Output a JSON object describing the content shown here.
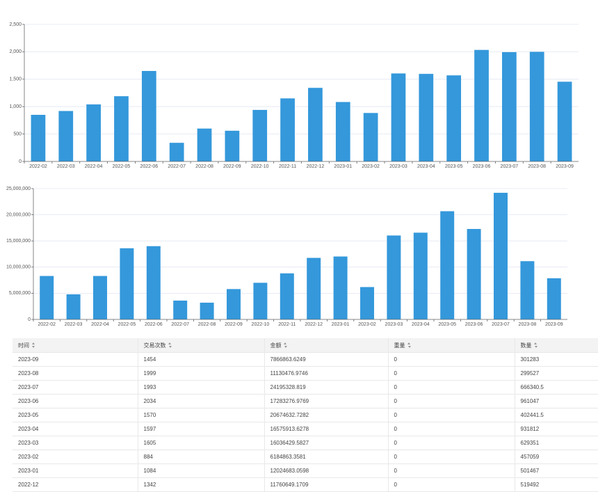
{
  "chart_data": [
    {
      "type": "bar",
      "color": "#3498db",
      "grid": true,
      "categories": [
        "2022-02",
        "2022-03",
        "2022-04",
        "2022-05",
        "2022-06",
        "2022-07",
        "2022-08",
        "2022-09",
        "2022-10",
        "2022-11",
        "2022-12",
        "2023-01",
        "2023-02",
        "2023-03",
        "2023-04",
        "2023-05",
        "2023-06",
        "2023-07",
        "2023-08",
        "2023-09"
      ],
      "values": [
        850,
        920,
        1040,
        1190,
        1650,
        340,
        600,
        560,
        940,
        1150,
        1342,
        1084,
        884,
        1605,
        1597,
        1570,
        2034,
        1993,
        1999,
        1454
      ],
      "ylim": [
        0,
        2500
      ],
      "yticks": [
        0,
        500,
        {
          "value": 1000,
          "label": "1,000"
        },
        {
          "value": 1500,
          "label": "1,500"
        },
        {
          "value": 2000,
          "label": "2,000"
        },
        {
          "value": 2500,
          "label": "2,500"
        }
      ]
    },
    {
      "type": "bar",
      "color": "#3498db",
      "grid": true,
      "categories": [
        "2022-02",
        "2022-03",
        "2022-04",
        "2022-05",
        "2022-06",
        "2022-07",
        "2022-08",
        "2022-09",
        "2022-10",
        "2022-11",
        "2022-12",
        "2023-01",
        "2023-02",
        "2023-03",
        "2023-04",
        "2023-05",
        "2023-06",
        "2023-07",
        "2023-08",
        "2023-09"
      ],
      "values": [
        8300000,
        4800000,
        8300000,
        13600000,
        14000000,
        3600000,
        3200000,
        5800000,
        7000000,
        8800000,
        11760649.1709,
        12024683.0598,
        6184863.3581,
        16036429.5827,
        16575913.6278,
        20674632.7282,
        17283276.9769,
        24195328.819,
        11130476.9746,
        7866863.6249
      ],
      "ylim": [
        0,
        25000000
      ],
      "yticks": [
        0,
        {
          "value": 5000000,
          "label": "5,000,000"
        },
        {
          "value": 10000000,
          "label": "10,000,000"
        },
        {
          "value": 15000000,
          "label": "15,000,000"
        },
        {
          "value": 20000000,
          "label": "20,000,000"
        },
        {
          "value": 25000000,
          "label": "25,000,000"
        }
      ]
    }
  ],
  "table": {
    "headers": [
      "时间",
      "交易次数",
      "金额",
      "重量",
      "数量"
    ],
    "rows": [
      [
        "2023-09",
        "1454",
        "7866863.6249",
        "0",
        "301283"
      ],
      [
        "2023-08",
        "1999",
        "11130476.9746",
        "0",
        "299527"
      ],
      [
        "2023-07",
        "1993",
        "24195328.819",
        "0",
        "666340.5"
      ],
      [
        "2023-06",
        "2034",
        "17283276.9769",
        "0",
        "961047"
      ],
      [
        "2023-05",
        "1570",
        "20674632.7282",
        "0",
        "402441.5"
      ],
      [
        "2023-04",
        "1597",
        "16575913.6278",
        "0",
        "931812"
      ],
      [
        "2023-03",
        "1605",
        "16036429.5827",
        "0",
        "629351"
      ],
      [
        "2023-02",
        "884",
        "6184863.3581",
        "0",
        "457059"
      ],
      [
        "2023-01",
        "1084",
        "12024683.0598",
        "0",
        "501467"
      ],
      [
        "2022-12",
        "1342",
        "11760649.1709",
        "0",
        "519492"
      ]
    ]
  }
}
